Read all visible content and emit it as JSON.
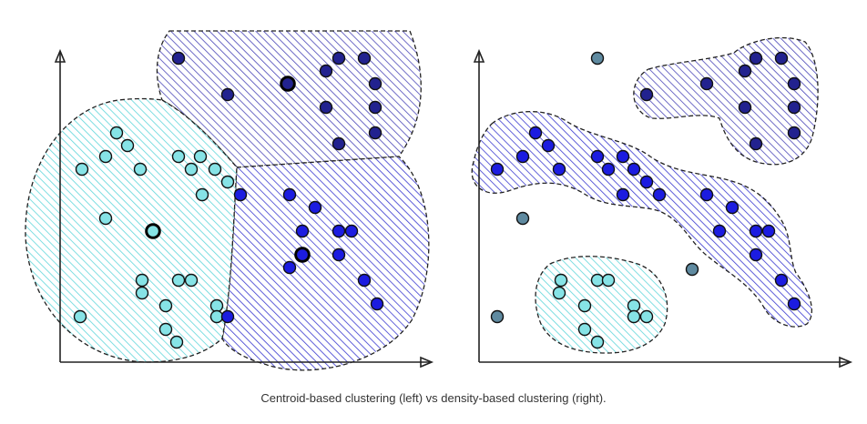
{
  "caption": "Centroid-based clustering (left) vs density-based clustering (right).",
  "colors": {
    "light_cluster": "#86e3e6",
    "dark_cluster": "#22228f",
    "blue_cluster": "#1c1ce0",
    "noise": "#5f8aa0",
    "hatch_cyan": "#5fd6db",
    "hatch_purple": "#4a47b8",
    "hatch_blue": "#3a3ad0"
  },
  "panels": [
    {
      "name": "centroid-based",
      "groups": [
        {
          "color": "light_cluster",
          "points": [
            [
              128,
              146
            ],
            [
              140,
              160
            ],
            [
              90,
              186
            ],
            [
              116,
              172
            ],
            [
              154,
              186
            ],
            [
              196,
              172
            ],
            [
              220,
              172
            ],
            [
              210,
              186
            ],
            [
              236,
              186
            ],
            [
              250,
              200
            ],
            [
              222,
              214
            ],
            [
              116,
              240
            ],
            [
              168,
              254
            ],
            [
              156,
              308
            ],
            [
              156,
              322
            ],
            [
              196,
              308
            ],
            [
              210,
              308
            ],
            [
              182,
              336
            ],
            [
              238,
              336
            ],
            [
              238,
              348
            ],
            [
              88,
              348
            ],
            [
              182,
              362
            ],
            [
              194,
              376
            ]
          ]
        },
        {
          "color": "dark_cluster",
          "points": [
            [
              196,
              64
            ],
            [
              372,
              64
            ],
            [
              400,
              64
            ],
            [
              358,
              78
            ],
            [
              316,
              92
            ],
            [
              412,
              92
            ],
            [
              250,
              104
            ],
            [
              358,
              118
            ],
            [
              412,
              118
            ],
            [
              412,
              146
            ],
            [
              372,
              158
            ]
          ]
        },
        {
          "color": "blue_cluster",
          "points": [
            [
              264,
              214
            ],
            [
              318,
              214
            ],
            [
              346,
              228
            ],
            [
              332,
              254
            ],
            [
              372,
              254
            ],
            [
              386,
              254
            ],
            [
              372,
              280
            ],
            [
              332,
              280
            ],
            [
              318,
              294
            ],
            [
              400,
              308
            ],
            [
              414,
              334
            ],
            [
              250,
              348
            ]
          ]
        }
      ],
      "centroids": [
        [
          168,
          254
        ],
        [
          316,
          92
        ],
        [
          332,
          280
        ]
      ]
    },
    {
      "name": "density-based",
      "groups": [
        {
          "color": "dark_cluster",
          "points": [
            [
              830,
              64
            ],
            [
              858,
              64
            ],
            [
              818,
              78
            ],
            [
              776,
              92
            ],
            [
              872,
              92
            ],
            [
              710,
              104
            ],
            [
              818,
              118
            ],
            [
              872,
              118
            ],
            [
              872,
              146
            ],
            [
              830,
              158
            ]
          ]
        },
        {
          "color": "blue_cluster",
          "points": [
            [
              588,
              146
            ],
            [
              602,
              160
            ],
            [
              574,
              172
            ],
            [
              546,
              186
            ],
            [
              614,
              186
            ],
            [
              656,
              172
            ],
            [
              684,
              172
            ],
            [
              668,
              186
            ],
            [
              696,
              186
            ],
            [
              710,
              200
            ],
            [
              724,
              214
            ],
            [
              684,
              214
            ],
            [
              776,
              214
            ],
            [
              804,
              228
            ],
            [
              790,
              254
            ],
            [
              830,
              254
            ],
            [
              844,
              254
            ],
            [
              830,
              280
            ],
            [
              858,
              308
            ],
            [
              872,
              334
            ]
          ]
        },
        {
          "color": "light_cluster",
          "points": [
            [
              616,
              308
            ],
            [
              656,
              308
            ],
            [
              668,
              308
            ],
            [
              614,
              322
            ],
            [
              642,
              336
            ],
            [
              696,
              336
            ],
            [
              696,
              348
            ],
            [
              710,
              348
            ],
            [
              642,
              362
            ],
            [
              656,
              376
            ]
          ]
        },
        {
          "color": "noise",
          "points": [
            [
              656,
              64
            ],
            [
              574,
              240
            ],
            [
              760,
              296
            ],
            [
              546,
              348
            ]
          ]
        }
      ],
      "centroids": []
    }
  ]
}
